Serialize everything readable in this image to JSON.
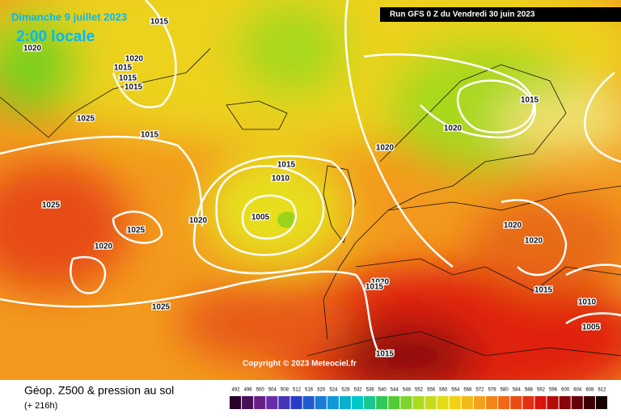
{
  "header": {
    "date": "Dimanche 9 juillet 2023",
    "time": "2:00 locale",
    "run": "Run GFS 0 Z du Vendredi 30 juin 2023"
  },
  "isobar_labels": [
    1015,
    1020,
    1020,
    1015,
    1015,
    1015,
    1025,
    1015,
    1015,
    1020,
    1020,
    1015,
    1010,
    1005,
    1020,
    1025,
    1025,
    1020,
    1025,
    1020,
    1020,
    1020,
    1015,
    1015,
    1010,
    1005,
    1015
  ],
  "copyright": "Copyright © 2023 Meteociel.fr",
  "footer": {
    "title": "Géop. Z500 & pression au sol",
    "lead": "(+ 216h)"
  },
  "scale": {
    "labels": [
      492,
      496,
      500,
      504,
      508,
      512,
      516,
      520,
      524,
      528,
      532,
      536,
      540,
      544,
      548,
      552,
      556,
      560,
      564,
      568,
      572,
      576,
      580,
      584,
      588,
      592,
      596,
      600,
      604,
      608,
      612
    ]
  }
}
